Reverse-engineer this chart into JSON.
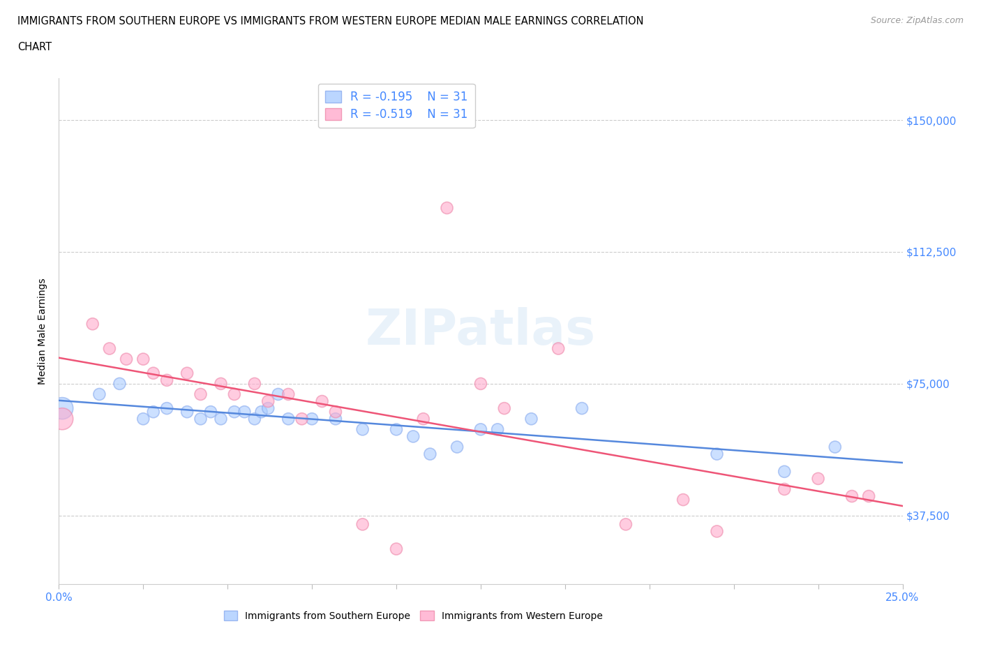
{
  "title_line1": "IMMIGRANTS FROM SOUTHERN EUROPE VS IMMIGRANTS FROM WESTERN EUROPE MEDIAN MALE EARNINGS CORRELATION",
  "title_line2": "CHART",
  "source": "Source: ZipAtlas.com",
  "ylabel": "Median Male Earnings",
  "xlim": [
    0.0,
    0.25
  ],
  "ylim": [
    18000,
    162000
  ],
  "yticks": [
    37500,
    75000,
    112500,
    150000
  ],
  "ytick_labels": [
    "$37,500",
    "$75,000",
    "$112,500",
    "$150,000"
  ],
  "xticks": [
    0.0,
    0.025,
    0.05,
    0.075,
    0.1,
    0.125,
    0.15,
    0.175,
    0.2,
    0.225,
    0.25
  ],
  "grid_color": "#cccccc",
  "background_color": "#ffffff",
  "blue_color": "#aaccff",
  "pink_color": "#ffaacc",
  "blue_edge_color": "#88aaee",
  "pink_edge_color": "#ee88aa",
  "blue_line_color": "#5588dd",
  "pink_line_color": "#ee5577",
  "legend_text_color": "#4488ff",
  "legend_R_blue": "R = -0.195",
  "legend_N_blue": "N = 31",
  "legend_R_pink": "R = -0.519",
  "legend_N_pink": "N = 31",
  "legend_label_blue": "Immigrants from Southern Europe",
  "legend_label_pink": "Immigrants from Western Europe",
  "watermark": "ZIPatlas",
  "blue_x": [
    0.001,
    0.012,
    0.018,
    0.025,
    0.028,
    0.032,
    0.038,
    0.042,
    0.045,
    0.048,
    0.052,
    0.055,
    0.058,
    0.06,
    0.062,
    0.065,
    0.068,
    0.075,
    0.082,
    0.09,
    0.1,
    0.105,
    0.11,
    0.118,
    0.125,
    0.13,
    0.14,
    0.155,
    0.195,
    0.215,
    0.23
  ],
  "blue_y": [
    68000,
    72000,
    75000,
    65000,
    67000,
    68000,
    67000,
    65000,
    67000,
    65000,
    67000,
    67000,
    65000,
    67000,
    68000,
    72000,
    65000,
    65000,
    65000,
    62000,
    62000,
    60000,
    55000,
    57000,
    62000,
    62000,
    65000,
    68000,
    55000,
    50000,
    57000
  ],
  "blue_big": [
    true,
    false,
    false,
    false,
    false,
    false,
    false,
    false,
    false,
    false,
    false,
    false,
    false,
    false,
    false,
    false,
    false,
    false,
    false,
    false,
    false,
    false,
    false,
    false,
    false,
    false,
    false,
    false,
    false,
    false,
    false
  ],
  "pink_x": [
    0.001,
    0.01,
    0.015,
    0.02,
    0.025,
    0.028,
    0.032,
    0.038,
    0.042,
    0.048,
    0.052,
    0.058,
    0.062,
    0.068,
    0.072,
    0.078,
    0.082,
    0.09,
    0.1,
    0.108,
    0.115,
    0.125,
    0.132,
    0.148,
    0.168,
    0.185,
    0.195,
    0.215,
    0.225,
    0.235,
    0.24
  ],
  "pink_y": [
    65000,
    92000,
    85000,
    82000,
    82000,
    78000,
    76000,
    78000,
    72000,
    75000,
    72000,
    75000,
    70000,
    72000,
    65000,
    70000,
    67000,
    35000,
    28000,
    65000,
    125000,
    75000,
    68000,
    85000,
    35000,
    42000,
    33000,
    45000,
    48000,
    43000,
    43000
  ],
  "pink_big": [
    true,
    false,
    false,
    false,
    false,
    false,
    false,
    false,
    false,
    false,
    false,
    false,
    false,
    false,
    false,
    false,
    false,
    false,
    false,
    false,
    false,
    false,
    false,
    false,
    false,
    false,
    false,
    false,
    false,
    false,
    false
  ]
}
